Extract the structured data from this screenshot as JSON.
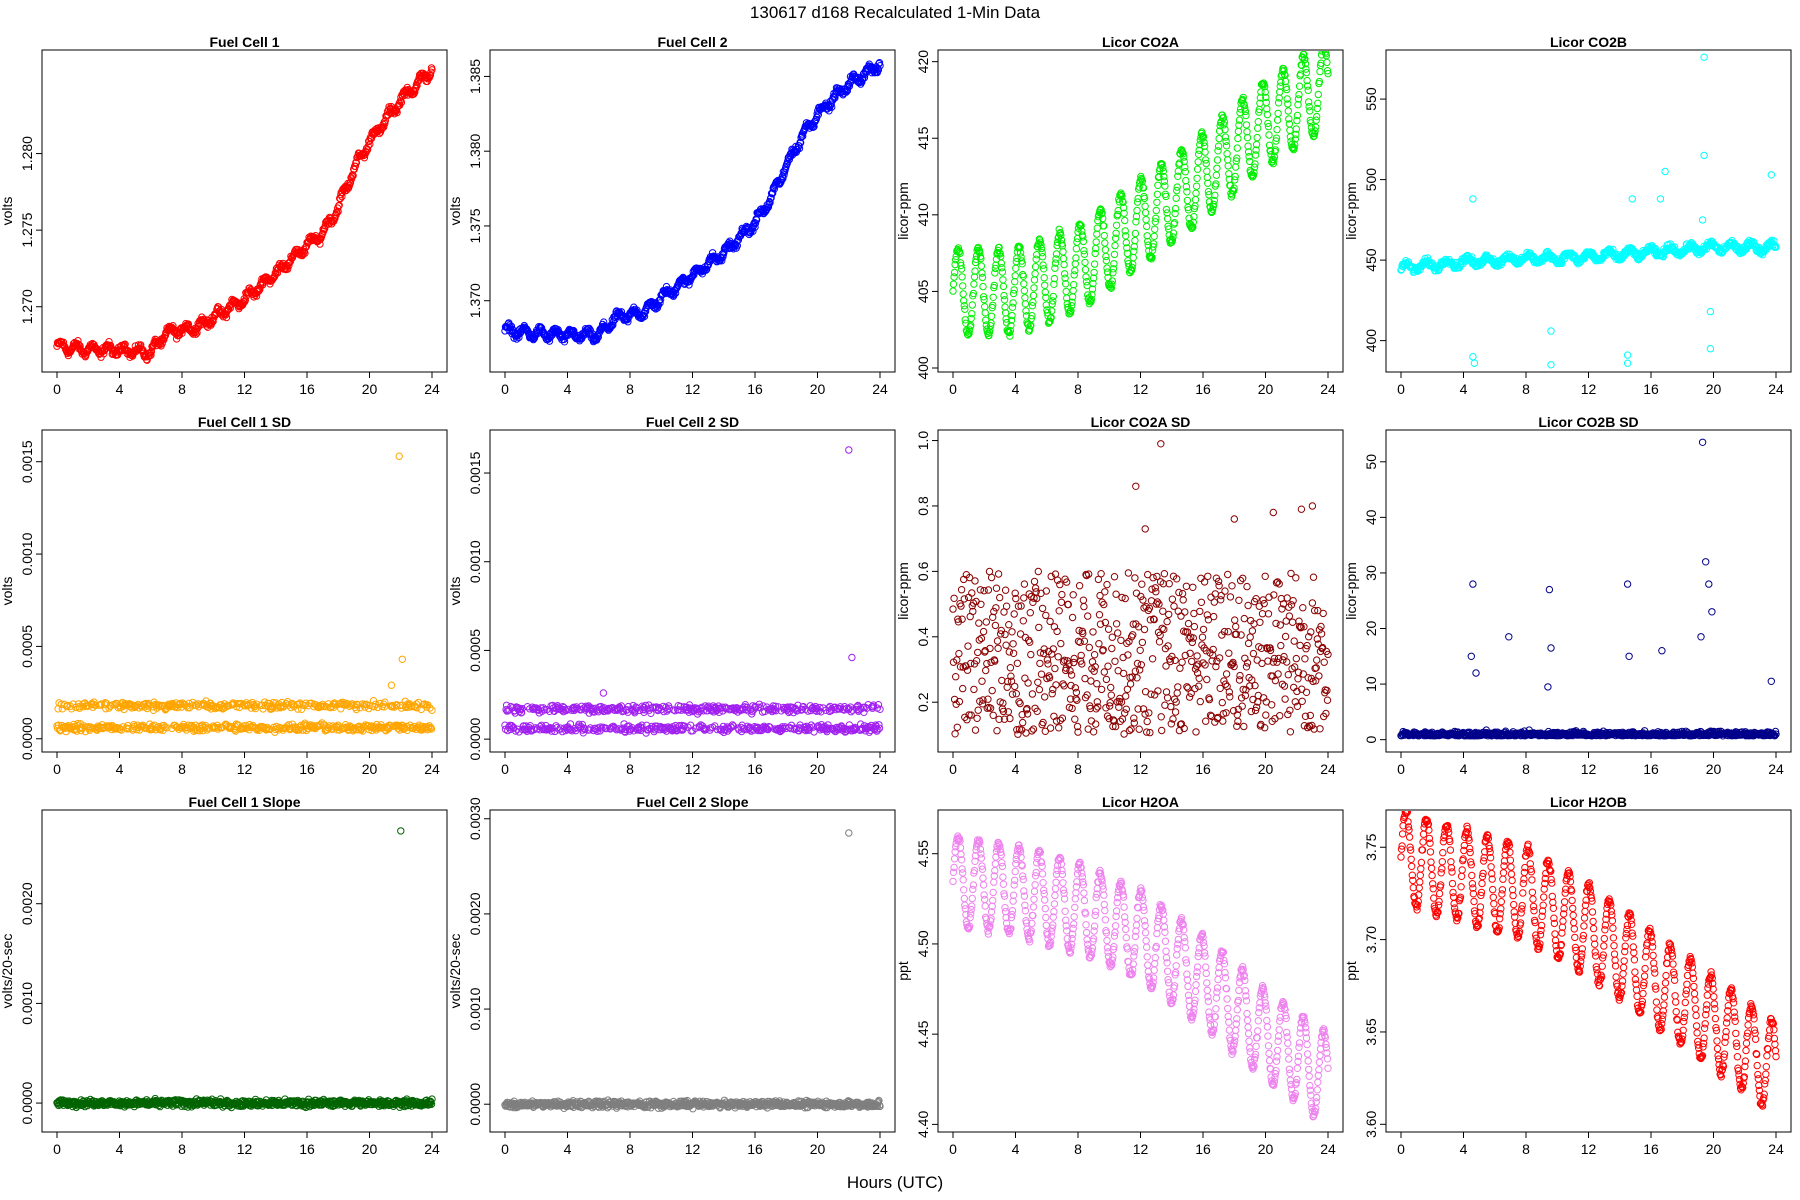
{
  "figure": {
    "title": "130617   d168   Recalculated 1-Min Data",
    "xlabel": "Hours (UTC)"
  },
  "chart_data": [
    {
      "id": "fc1",
      "type": "scatter",
      "title": "Fuel Cell 1",
      "ylabel": "volts",
      "color": "#ff0000",
      "xlim": [
        0,
        24
      ],
      "ylim": [
        1.266,
        1.2865
      ],
      "xticks": [
        0,
        4,
        8,
        12,
        16,
        20,
        24
      ],
      "yticks": [
        1.27,
        1.275,
        1.28
      ],
      "ytick_labels": [
        "1.270",
        "1.275",
        "1.280"
      ],
      "trend": [
        [
          0,
          1.2674
        ],
        [
          2,
          1.2672
        ],
        [
          4,
          1.2672
        ],
        [
          6,
          1.267
        ],
        [
          7,
          1.2683
        ],
        [
          9,
          1.2687
        ],
        [
          10,
          1.2693
        ],
        [
          12,
          1.2705
        ],
        [
          14,
          1.2722
        ],
        [
          16,
          1.274
        ],
        [
          17,
          1.2748
        ],
        [
          18,
          1.2765
        ],
        [
          19,
          1.279
        ],
        [
          20,
          1.2808
        ],
        [
          22,
          1.2835
        ],
        [
          24,
          1.2855
        ]
      ],
      "noise": 0.00035,
      "wave": 0.0003
    },
    {
      "id": "fc2",
      "type": "scatter",
      "title": "Fuel Cell 2",
      "ylabel": "volts",
      "color": "#0000ff",
      "xlim": [
        0,
        24
      ],
      "ylim": [
        1.3655,
        1.3865
      ],
      "xticks": [
        0,
        4,
        8,
        12,
        16,
        20,
        24
      ],
      "yticks": [
        1.37,
        1.375,
        1.38,
        1.385
      ],
      "ytick_labels": [
        "1.370",
        "1.375",
        "1.380",
        "1.385"
      ],
      "trend": [
        [
          0,
          1.368
        ],
        [
          2,
          1.3678
        ],
        [
          4,
          1.3677
        ],
        [
          6,
          1.3677
        ],
        [
          7,
          1.3688
        ],
        [
          9,
          1.3693
        ],
        [
          10,
          1.3702
        ],
        [
          12,
          1.3717
        ],
        [
          14,
          1.3732
        ],
        [
          16,
          1.3752
        ],
        [
          17,
          1.3768
        ],
        [
          18,
          1.379
        ],
        [
          19,
          1.381
        ],
        [
          20,
          1.3825
        ],
        [
          22,
          1.3845
        ],
        [
          24,
          1.3858
        ]
      ],
      "noise": 0.00035,
      "wave": 0.0003
    },
    {
      "id": "co2a",
      "type": "scatter",
      "title": "Licor CO2A",
      "ylabel": "licor-ppm",
      "color": "#00ee00",
      "xlim": [
        0,
        24
      ],
      "ylim": [
        400,
        420.5
      ],
      "xticks": [
        0,
        4,
        8,
        12,
        16,
        20,
        24
      ],
      "yticks": [
        400,
        405,
        410,
        415,
        420
      ],
      "ytick_labels": [
        "400",
        "405",
        "410",
        "415",
        "420"
      ],
      "trend": [
        [
          0,
          405
        ],
        [
          4,
          405
        ],
        [
          8,
          406.5
        ],
        [
          12,
          409.5
        ],
        [
          16,
          412.5
        ],
        [
          20,
          416
        ],
        [
          24,
          418.5
        ]
      ],
      "noise": 0.3,
      "wave": 2.8,
      "waveperiod": 1.3
    },
    {
      "id": "co2b",
      "type": "scatter",
      "title": "Licor CO2B",
      "ylabel": "licor-ppm",
      "color": "#00ffff",
      "xlim": [
        0,
        24
      ],
      "ylim": [
        383,
        578
      ],
      "xticks": [
        0,
        4,
        8,
        12,
        16,
        20,
        24
      ],
      "yticks": [
        400,
        450,
        500,
        550
      ],
      "ytick_labels": [
        "400",
        "450",
        "500",
        "550"
      ],
      "trend": [
        [
          0,
          445
        ],
        [
          4,
          449
        ],
        [
          8,
          451
        ],
        [
          12,
          452
        ],
        [
          16,
          455
        ],
        [
          20,
          458
        ],
        [
          24,
          458
        ]
      ],
      "noise": 3,
      "wave": 2.5,
      "waveperiod": 1.3,
      "outliers": [
        [
          4.6,
          488
        ],
        [
          4.6,
          390
        ],
        [
          4.7,
          386
        ],
        [
          9.6,
          406
        ],
        [
          9.6,
          385
        ],
        [
          14.5,
          391
        ],
        [
          14.5,
          386
        ],
        [
          14.8,
          488
        ],
        [
          16.6,
          488
        ],
        [
          16.9,
          505
        ],
        [
          19.3,
          475
        ],
        [
          19.4,
          515
        ],
        [
          19.4,
          576
        ],
        [
          19.8,
          395
        ],
        [
          19.8,
          418
        ],
        [
          23.7,
          503
        ]
      ]
    },
    {
      "id": "fc1sd",
      "type": "scatter",
      "title": "Fuel Cell 1 SD",
      "ylabel": "volts",
      "color": "#ffa500",
      "xlim": [
        0,
        24
      ],
      "ylim": [
        -5e-05,
        0.00165
      ],
      "xticks": [
        0,
        4,
        8,
        12,
        16,
        20,
        24
      ],
      "yticks": [
        0,
        0.0005,
        0.001,
        0.0015
      ],
      "ytick_labels": [
        "0.0000",
        "0.0005",
        "0.0010",
        "0.0015"
      ],
      "bands": [
        6e-05,
        0.00018
      ],
      "noise": 3e-05,
      "outliers": [
        [
          21.9,
          0.00153
        ],
        [
          22.1,
          0.00043
        ],
        [
          21.4,
          0.00029
        ]
      ]
    },
    {
      "id": "fc2sd",
      "type": "scatter",
      "title": "Fuel Cell 2 SD",
      "ylabel": "volts",
      "color": "#a020f0",
      "xlim": [
        0,
        24
      ],
      "ylim": [
        -5e-05,
        0.00172
      ],
      "xticks": [
        0,
        4,
        8,
        12,
        16,
        20,
        24
      ],
      "yticks": [
        0,
        0.0005,
        0.001,
        0.0015
      ],
      "ytick_labels": [
        "0.0000",
        "0.0005",
        "0.0010",
        "0.0015"
      ],
      "bands": [
        6e-05,
        0.00017
      ],
      "noise": 3e-05,
      "outliers": [
        [
          22.0,
          0.00163
        ],
        [
          22.2,
          0.00046
        ],
        [
          6.3,
          0.00026
        ]
      ]
    },
    {
      "id": "co2asd",
      "type": "scatter",
      "title": "Licor CO2A SD",
      "ylabel": "licor-ppm",
      "color": "#8b0000",
      "xlim": [
        0,
        24
      ],
      "ylim": [
        0.06,
        1.02
      ],
      "xticks": [
        0,
        4,
        8,
        12,
        16,
        20,
        24
      ],
      "yticks": [
        0.2,
        0.4,
        0.6,
        0.8,
        1.0
      ],
      "ytick_labels": [
        "0.2",
        "0.4",
        "0.6",
        "0.8",
        "1.0"
      ],
      "spread": [
        0.1,
        0.6
      ],
      "outliers": [
        [
          13.3,
          0.99
        ],
        [
          11.7,
          0.86
        ],
        [
          12.3,
          0.73
        ],
        [
          18.0,
          0.76
        ],
        [
          20.5,
          0.78
        ],
        [
          22.3,
          0.79
        ],
        [
          23.0,
          0.8
        ]
      ]
    },
    {
      "id": "co2bsd",
      "type": "scatter",
      "title": "Licor CO2B SD",
      "ylabel": "licor-ppm",
      "color": "#00008b",
      "xlim": [
        0,
        24
      ],
      "ylim": [
        -1.5,
        55
      ],
      "xticks": [
        0,
        4,
        8,
        12,
        16,
        20,
        24
      ],
      "yticks": [
        0,
        10,
        20,
        30,
        40,
        50
      ],
      "ytick_labels": [
        "0",
        "10",
        "20",
        "30",
        "40",
        "50"
      ],
      "base": 0.7,
      "noise": 0.7,
      "outliers": [
        [
          4.6,
          28
        ],
        [
          4.5,
          15
        ],
        [
          4.8,
          12
        ],
        [
          6.9,
          18.5
        ],
        [
          9.5,
          27
        ],
        [
          9.6,
          16.5
        ],
        [
          9.4,
          9.5
        ],
        [
          14.5,
          28
        ],
        [
          14.6,
          15
        ],
        [
          16.7,
          16
        ],
        [
          19.3,
          53.5
        ],
        [
          19.5,
          32
        ],
        [
          19.9,
          23
        ],
        [
          19.2,
          18.5
        ],
        [
          19.7,
          28
        ],
        [
          23.7,
          10.5
        ]
      ]
    },
    {
      "id": "fc1slope",
      "type": "scatter",
      "title": "Fuel Cell 1 Slope",
      "ylabel": "volts/20-sec",
      "color": "#006400",
      "xlim": [
        0,
        24
      ],
      "ylim": [
        -0.00025,
        0.0029
      ],
      "xticks": [
        0,
        4,
        8,
        12,
        16,
        20,
        24
      ],
      "yticks": [
        0,
        0.001,
        0.002
      ],
      "ytick_labels": [
        "0.0000",
        "0.0010",
        "0.0020"
      ],
      "base": 0,
      "noise": 5e-05,
      "outliers": [
        [
          22.0,
          0.00273
        ]
      ]
    },
    {
      "id": "fc2slope",
      "type": "scatter",
      "title": "Fuel Cell 2 Slope",
      "ylabel": "volts/20-sec",
      "color": "#7f7f7f",
      "xlim": [
        0,
        24
      ],
      "ylim": [
        -0.00025,
        0.00305
      ],
      "xticks": [
        0,
        4,
        8,
        12,
        16,
        20,
        24
      ],
      "yticks": [
        0,
        0.001,
        0.002,
        0.003
      ],
      "ytick_labels": [
        "0.0000",
        "0.0010",
        "0.0020",
        "0.0030"
      ],
      "base": 0,
      "noise": 5e-05,
      "outliers": [
        [
          22.0,
          0.00285
        ]
      ]
    },
    {
      "id": "h2oa",
      "type": "scatter",
      "title": "Licor H2OA",
      "ylabel": "ppt",
      "color": "#ee82ee",
      "xlim": [
        0,
        24
      ],
      "ylim": [
        4.398,
        4.572
      ],
      "xticks": [
        0,
        4,
        8,
        12,
        16,
        20,
        24
      ],
      "yticks": [
        4.4,
        4.45,
        4.5,
        4.55
      ],
      "ytick_labels": [
        "4.40",
        "4.45",
        "4.50",
        "4.55"
      ],
      "trend": [
        [
          0,
          4.535
        ],
        [
          4,
          4.53
        ],
        [
          8,
          4.52
        ],
        [
          12,
          4.505
        ],
        [
          16,
          4.48
        ],
        [
          20,
          4.45
        ],
        [
          24,
          4.425
        ]
      ],
      "noise": 0.003,
      "wave": 0.025,
      "waveperiod": 1.3
    },
    {
      "id": "h2ob",
      "type": "scatter",
      "title": "Licor H2OB",
      "ylabel": "ppt",
      "color": "#ff0000",
      "xlim": [
        0,
        24
      ],
      "ylim": [
        3.598,
        3.768
      ],
      "xticks": [
        0,
        4,
        8,
        12,
        16,
        20,
        24
      ],
      "yticks": [
        3.6,
        3.65,
        3.7,
        3.75
      ],
      "ytick_labels": [
        "3.60",
        "3.65",
        "3.70",
        "3.75"
      ],
      "trend": [
        [
          0,
          3.745
        ],
        [
          4,
          3.735
        ],
        [
          8,
          3.725
        ],
        [
          12,
          3.705
        ],
        [
          16,
          3.68
        ],
        [
          20,
          3.655
        ],
        [
          24,
          3.63
        ]
      ],
      "noise": 0.003,
      "wave": 0.025,
      "waveperiod": 1.3
    }
  ]
}
